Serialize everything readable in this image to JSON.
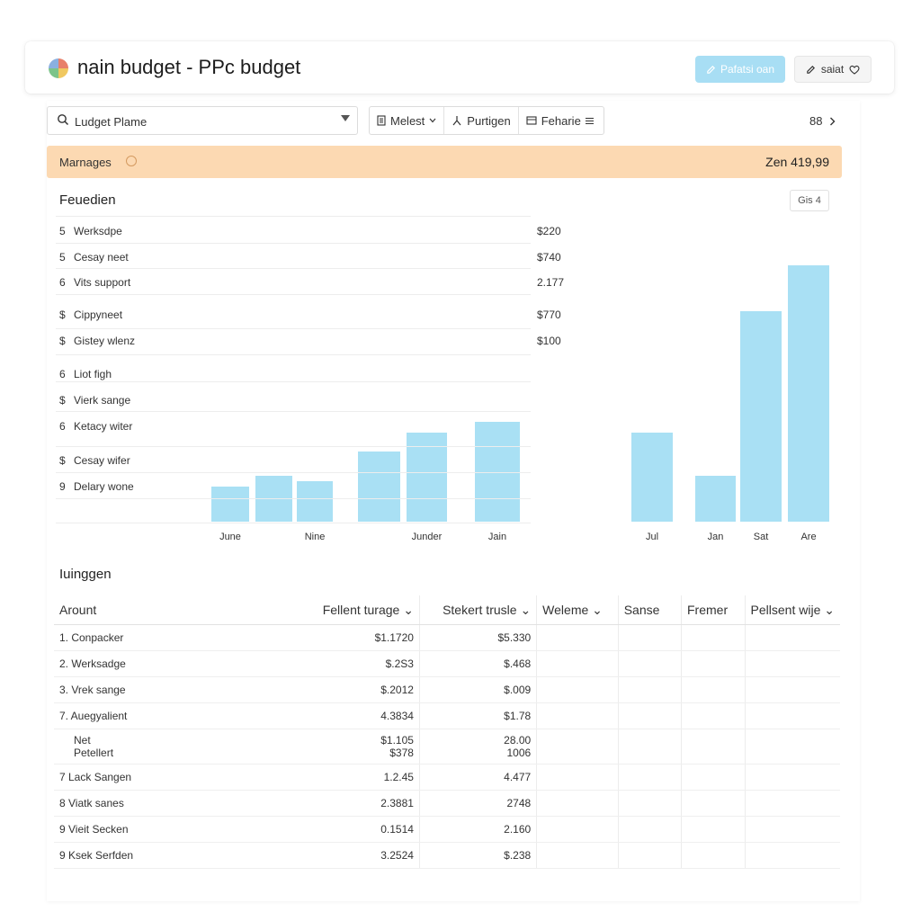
{
  "header": {
    "title": "nain budget - PPc budget",
    "primary_button": "Pafatsi oan",
    "secondary_button": "saiat",
    "logo_colors": [
      "#e8806a",
      "#f0c860",
      "#7cc48a",
      "#8ab0e0"
    ]
  },
  "toolbar": {
    "search_value": "Ludget Plame",
    "items": [
      "Melest",
      "Purtigen",
      "Feharie"
    ],
    "page_count": "88"
  },
  "banner": {
    "title": "Marnages",
    "amount": "Zen 419,99",
    "color": "#fcd9b2"
  },
  "section": {
    "title": "Feuedien",
    "chip": "Gis 4"
  },
  "list": [
    {
      "num": "5",
      "label": "Werksdpe",
      "value": "$220"
    },
    {
      "num": "5",
      "label": "Cesay neet",
      "value": "$740"
    },
    {
      "num": "6",
      "label": "Vits support",
      "value": "2.177"
    },
    {
      "num": "$",
      "label": "Cippyneet",
      "value": "$770"
    },
    {
      "num": "$",
      "label": "Gistey wlenz",
      "value": "$100"
    },
    {
      "num": "6",
      "label": "Liot figh",
      "value": ""
    },
    {
      "num": "$",
      "label": "Vierk sange",
      "value": ""
    },
    {
      "num": "6",
      "label": "Ketacy witer",
      "value": ""
    },
    {
      "num": "$",
      "label": "Cesay wifer",
      "value": ""
    },
    {
      "num": "9",
      "label": "Delary wone",
      "value": ""
    }
  ],
  "chart_data": {
    "type": "bar",
    "bar_color": "#a9e0f4",
    "bars": [
      {
        "label": "June",
        "value": 13
      },
      {
        "label": "",
        "value": 17
      },
      {
        "label": "Nine",
        "value": 15
      },
      {
        "label": "",
        "value": 26
      },
      {
        "label": "Junder",
        "value": 33
      },
      {
        "label": "Jain",
        "value": 37
      },
      {
        "label": "Jul",
        "value": 33
      },
      {
        "label": "Jan",
        "value": 17
      },
      {
        "label": "Sat",
        "value": 78
      },
      {
        "label": "Are",
        "value": 95
      }
    ],
    "ylim": [
      0,
      100
    ]
  },
  "table": {
    "title": "Iuinggen",
    "columns": [
      "Arount",
      "Fellent turage",
      "Stekert trusle",
      "Weleme",
      "Sanse",
      "Fremer",
      "Pellsent wije"
    ],
    "rows": [
      {
        "name": "1. Conpacker",
        "c1": "$1.1720",
        "c2": "$5.330"
      },
      {
        "name": "2. Werksadge",
        "c1": "$.2S3",
        "c2": "$.468"
      },
      {
        "name": "3. Vrek sange",
        "c1": "$.2012",
        "c2": "$.009"
      },
      {
        "name": "7. Auegyalient",
        "c1": "4.3834",
        "c2": "$1.78"
      },
      {
        "name": "Net",
        "name2": "Petellert",
        "c1": "$1.105",
        "c1b": "$378",
        "c2": "28.00",
        "c2b": "1006"
      },
      {
        "name": "7 Lack Sangen",
        "c1": "1.2.45",
        "c2": "4.477"
      },
      {
        "name": "8 Viatk sanes",
        "c1": "2.3881",
        "c2": "2748"
      },
      {
        "name": "9 Vieit Secken",
        "c1": "0.1514",
        "c2": "2.160"
      },
      {
        "name": "9 Ksek Serfden",
        "c1": "3.2524",
        "c2": "$.238"
      }
    ]
  }
}
